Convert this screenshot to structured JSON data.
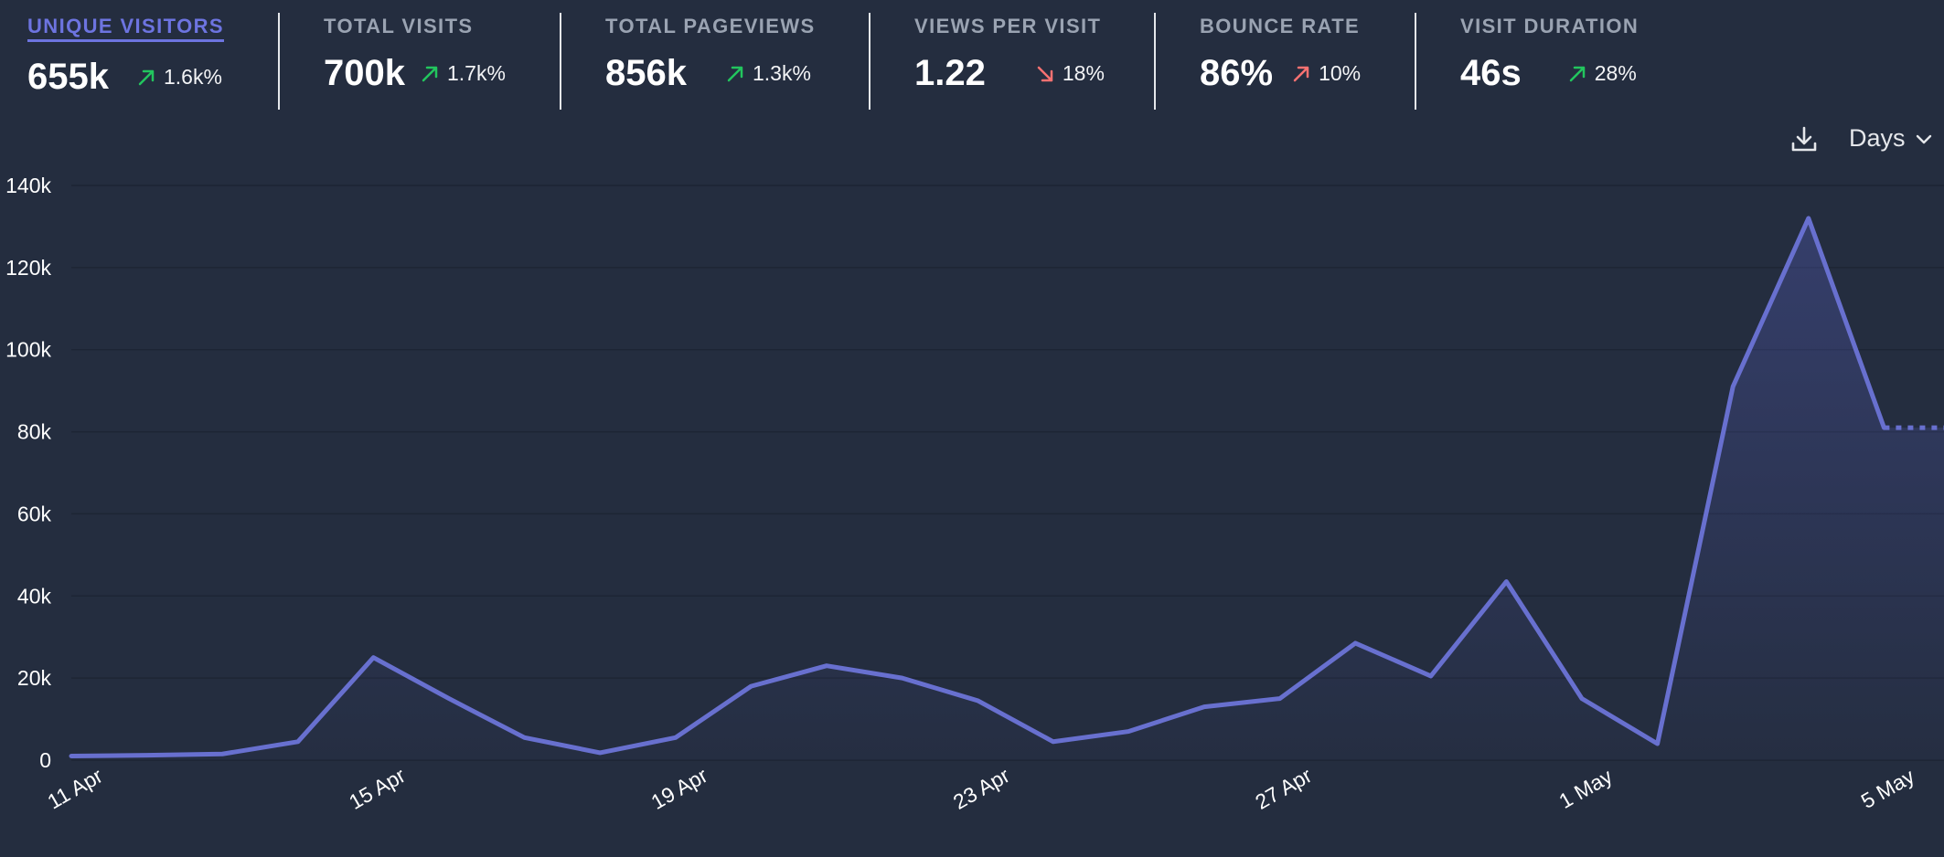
{
  "stats": [
    {
      "label": "UNIQUE VISITORS",
      "value": "655k",
      "change": "1.6k%",
      "direction": "up",
      "active": true
    },
    {
      "label": "TOTAL VISITS",
      "value": "700k",
      "change": "1.7k%",
      "direction": "up",
      "active": false
    },
    {
      "label": "TOTAL PAGEVIEWS",
      "value": "856k",
      "change": "1.3k%",
      "direction": "up",
      "active": false
    },
    {
      "label": "VIEWS PER VISIT",
      "value": "1.22",
      "change": "18%",
      "direction": "down",
      "active": false
    },
    {
      "label": "BOUNCE RATE",
      "value": "86%",
      "change": "10%",
      "direction": "up-bad",
      "active": false
    },
    {
      "label": "VISIT DURATION",
      "value": "46s",
      "change": "28%",
      "direction": "up",
      "active": false
    }
  ],
  "toolbar": {
    "download_icon": "download-icon",
    "interval_label": "Days"
  },
  "colors": {
    "background": "#242d3f",
    "line": "#6870cf",
    "active_label": "#6d74e0",
    "positive": "#22c55e",
    "negative": "#f87171",
    "muted_label": "#9aa3b2"
  },
  "chart_data": {
    "type": "area",
    "grid": true,
    "ylim": [
      0,
      140000
    ],
    "yticks": [
      "0",
      "20k",
      "40k",
      "60k",
      "80k",
      "100k",
      "120k",
      "140k"
    ],
    "ytick_values": [
      0,
      20000,
      40000,
      60000,
      80000,
      100000,
      120000,
      140000
    ],
    "xtick_labels": [
      "11 Apr",
      "15 Apr",
      "19 Apr",
      "23 Apr",
      "27 Apr",
      "1 May",
      "5 May"
    ],
    "x": [
      "11 Apr",
      "12 Apr",
      "13 Apr",
      "14 Apr",
      "15 Apr",
      "16 Apr",
      "17 Apr",
      "18 Apr",
      "19 Apr",
      "20 Apr",
      "21 Apr",
      "22 Apr",
      "23 Apr",
      "24 Apr",
      "25 Apr",
      "26 Apr",
      "27 Apr",
      "28 Apr",
      "29 Apr",
      "30 Apr",
      "1 May",
      "2 May",
      "3 May",
      "4 May",
      "5 May",
      "6 May"
    ],
    "series": [
      {
        "values": [
          1000,
          1200,
          1500,
          4500,
          25000,
          15000,
          5500,
          1800,
          5500,
          18000,
          23000,
          20000,
          14500,
          4500,
          7000,
          13000,
          15000,
          28500,
          20500,
          43500,
          15000,
          4000,
          91000,
          132000,
          81000,
          81000
        ],
        "incomplete_last_segment": true
      }
    ]
  }
}
